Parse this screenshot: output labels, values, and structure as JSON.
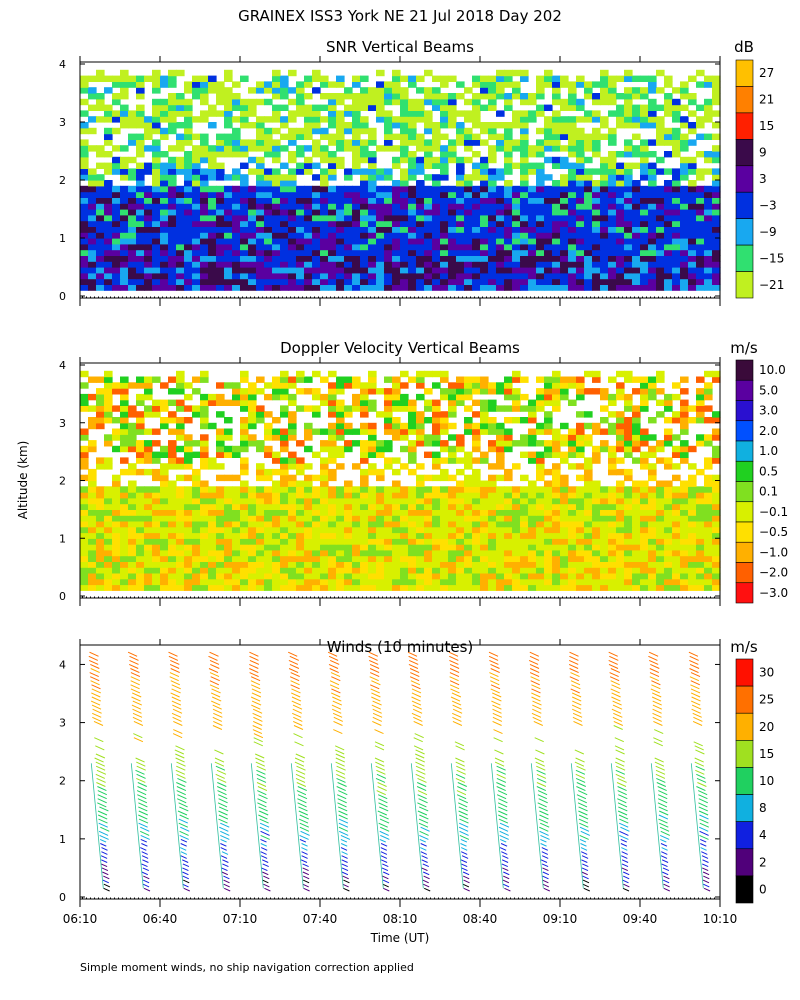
{
  "figure": {
    "title": "GRAINEX ISS3 York NE  21 Jul 2018 Day 202",
    "ylabel": "Altitude (km)",
    "xlabel": "Time (UT)",
    "footnote": "Simple moment winds, no ship navigation correction applied"
  },
  "chart_data": [
    {
      "type": "heatmap",
      "title": "SNR Vertical Beams",
      "units": "dB",
      "x_ticks": [
        "06:10",
        "06:40",
        "07:10",
        "07:40",
        "08:10",
        "08:40",
        "09:10",
        "09:40",
        "10:10"
      ],
      "xlim": [
        "06:10",
        "10:10"
      ],
      "y_ticks": [
        0,
        1,
        2,
        3,
        4
      ],
      "ylim": [
        0,
        4
      ],
      "colorbar": {
        "labels": [
          "27",
          "21",
          "15",
          "9",
          "3",
          "−3",
          "−9",
          "−15",
          "−21"
        ],
        "colors": [
          "#ffc000",
          "#ff8000",
          "#ff2000",
          "#3a0a4a",
          "#5a00a0",
          "#0030e0",
          "#18a8f0",
          "#30e070",
          "#c0f020"
        ]
      },
      "z_ranges": {
        "0.1-0.7": [
          -15,
          -9,
          3,
          9
        ],
        "0.7-1.9": [
          -3,
          3,
          9
        ],
        "1.9-2.3": [
          -21,
          -3,
          3
        ],
        "2.3-3.8": [
          -21,
          -15,
          -9,
          -3
        ]
      }
    },
    {
      "type": "heatmap",
      "title": "Doppler Velocity Vertical Beams",
      "units": "m/s",
      "x_ticks": [
        "06:10",
        "06:40",
        "07:10",
        "07:40",
        "08:10",
        "08:40",
        "09:10",
        "09:40",
        "10:10"
      ],
      "xlim": [
        "06:10",
        "10:10"
      ],
      "y_ticks": [
        0,
        1,
        2,
        3,
        4
      ],
      "ylim": [
        0,
        4
      ],
      "colorbar": {
        "labels": [
          "10.0",
          "5.0",
          "3.0",
          "2.0",
          "1.0",
          "0.5",
          "0.1",
          "−0.1",
          "−0.5",
          "−1.0",
          "−2.0",
          "−3.0"
        ],
        "colors": [
          "#3a0a3a",
          "#5a00a0",
          "#2a10d0",
          "#0050ff",
          "#10b0e0",
          "#20d020",
          "#80e020",
          "#d8f000",
          "#ffe000",
          "#ffb000",
          "#ff6000",
          "#ff1010"
        ]
      },
      "z_ranges": {
        "0.1-1.9": [
          -0.5,
          -0.1,
          0.1
        ],
        "1.9-3.8": [
          -1.0,
          -0.1,
          0.5
        ]
      }
    },
    {
      "type": "wind_barbs",
      "title": "Winds (10 minutes)",
      "units": "m/s",
      "x_ticks": [
        "06:10",
        "06:40",
        "07:10",
        "07:40",
        "08:10",
        "08:40",
        "09:10",
        "09:40",
        "10:10"
      ],
      "xlim": [
        "06:10",
        "10:10"
      ],
      "y_ticks": [
        0,
        1,
        2,
        3,
        4
      ],
      "ylim": [
        0,
        4.3
      ],
      "colorbar": {
        "labels": [
          "30",
          "25",
          "20",
          "15",
          "10",
          "8",
          "4",
          "2",
          "0"
        ],
        "colors": [
          "#ff1000",
          "#ff7000",
          "#ffb000",
          "#a0e020",
          "#20d060",
          "#10b0e0",
          "#1020e0",
          "#50007a",
          "#000000"
        ]
      },
      "profile_times": [
        "06:15",
        "06:30",
        "06:45",
        "07:00",
        "07:15",
        "07:30",
        "07:45",
        "08:00",
        "08:15",
        "08:30",
        "08:45",
        "09:00",
        "09:15",
        "09:30",
        "09:45",
        "10:00"
      ],
      "speed_vs_altitude": [
        {
          "altitude_km": 0.3,
          "speed": 3
        },
        {
          "altitude_km": 0.8,
          "speed": 7
        },
        {
          "altitude_km": 1.5,
          "speed": 12
        },
        {
          "altitude_km": 2.2,
          "speed": 16
        },
        {
          "altitude_km": 3.0,
          "speed": 21
        },
        {
          "altitude_km": 3.8,
          "speed": 25
        },
        {
          "altitude_km": 4.2,
          "speed": 28
        }
      ]
    }
  ]
}
